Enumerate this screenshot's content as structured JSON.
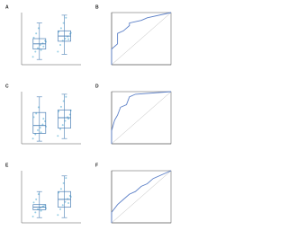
{
  "chart_data": [
    {
      "type": "box",
      "label": "A",
      "ylim": [
        0,
        10
      ],
      "categories": [
        null,
        null
      ],
      "color": "#4a7fb5",
      "point_color": "#7fc3df",
      "boxes": [
        {
          "min": 1,
          "q1": 3,
          "median": 4,
          "q3": 5,
          "max": 8,
          "points": [
            1.5,
            2.5,
            3.2,
            3.8,
            4.1,
            4.6,
            5.2,
            6,
            7,
            2.8,
            3.5,
            4.4
          ]
        },
        {
          "min": 2,
          "q1": 4.5,
          "median": 5.5,
          "q3": 6.5,
          "max": 9.5,
          "points": [
            2.5,
            3.8,
            4.6,
            5,
            5.4,
            5.9,
            6.3,
            7,
            8,
            9,
            4.9,
            6.1
          ]
        }
      ]
    },
    {
      "type": "line",
      "label": "B",
      "xlim": [
        0,
        1
      ],
      "ylim": [
        0,
        1
      ],
      "color": "#5b7fc7",
      "x": [
        0,
        0,
        0.1,
        0.1,
        0.2,
        0.3,
        0.3,
        0.5,
        0.6,
        1
      ],
      "y": [
        0,
        0.3,
        0.4,
        0.6,
        0.65,
        0.75,
        0.8,
        0.85,
        0.9,
        1
      ]
    },
    {
      "type": "box",
      "label": "C",
      "ylim": [
        0,
        10
      ],
      "categories": [
        null,
        null
      ],
      "color": "#4a7fb5",
      "point_color": "#7fc3df",
      "boxes": [
        {
          "min": 0.5,
          "q1": 2,
          "median": 3.5,
          "q3": 6,
          "max": 9,
          "points": [
            1,
            1.8,
            2.6,
            3.1,
            3.7,
            4.3,
            5.1,
            5.8,
            7,
            2.2,
            4.8,
            3.3
          ]
        },
        {
          "min": 1,
          "q1": 3,
          "median": 5,
          "q3": 6.5,
          "max": 9.5,
          "points": [
            1.5,
            2.8,
            3.6,
            4.4,
            5.1,
            5.6,
            6.2,
            7.1,
            8.2,
            9,
            4.8,
            6.4
          ]
        }
      ]
    },
    {
      "type": "line",
      "label": "D",
      "xlim": [
        0,
        1
      ],
      "ylim": [
        0,
        1
      ],
      "color": "#5b7fc7",
      "x": [
        0,
        0,
        0.05,
        0.1,
        0.15,
        0.25,
        0.3,
        0.4,
        1
      ],
      "y": [
        0,
        0.25,
        0.45,
        0.55,
        0.7,
        0.75,
        0.9,
        0.95,
        1
      ]
    },
    {
      "type": "box",
      "label": "E",
      "ylim": [
        0,
        10
      ],
      "categories": [
        null,
        null
      ],
      "color": "#4a7fb5",
      "point_color": "#7fc3df",
      "boxes": [
        {
          "min": 1,
          "q1": 2.5,
          "median": 3,
          "q3": 3.5,
          "max": 6,
          "points": [
            1.2,
            2,
            2.6,
            2.9,
            3.1,
            3.4,
            3.9,
            4.5,
            5.5,
            2.3,
            3.2,
            2.8
          ]
        },
        {
          "min": 1,
          "q1": 3,
          "median": 4.5,
          "q3": 6,
          "max": 9,
          "points": [
            1.5,
            2.6,
            3.4,
            4,
            4.6,
            5.2,
            5.8,
            6.5,
            7.6,
            8.6,
            3.8,
            5
          ]
        }
      ]
    },
    {
      "type": "line",
      "label": "F",
      "xlim": [
        0,
        1
      ],
      "ylim": [
        0,
        1
      ],
      "color": "#5b7fc7",
      "x": [
        0,
        0,
        0.1,
        0.2,
        0.3,
        0.4,
        0.5,
        0.6,
        0.7,
        1
      ],
      "y": [
        0,
        0.2,
        0.35,
        0.45,
        0.55,
        0.6,
        0.7,
        0.75,
        0.85,
        1
      ]
    }
  ]
}
